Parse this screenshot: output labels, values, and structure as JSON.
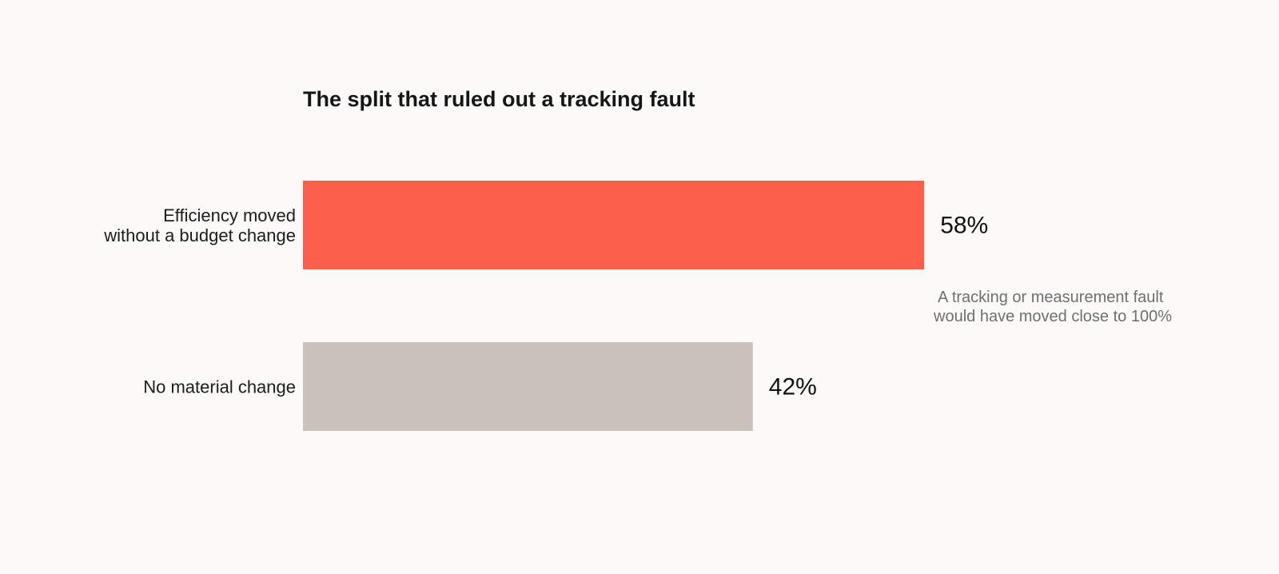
{
  "chart_data": {
    "type": "bar",
    "orientation": "horizontal",
    "title": "The split that ruled out a tracking fault",
    "xlabel": "",
    "ylabel": "",
    "xlim": [
      0,
      100
    ],
    "grid": false,
    "categories": [
      [
        "Efficiency moved",
        "without a budget change"
      ],
      [
        "No material change"
      ]
    ],
    "values": [
      58,
      42
    ],
    "value_labels": [
      "58%",
      "42%"
    ],
    "colors": [
      "#fc5f4b",
      "#c9c1ba"
    ],
    "annotation": [
      "A tracking or measurement fault",
      "would have moved close to 100%"
    ]
  }
}
